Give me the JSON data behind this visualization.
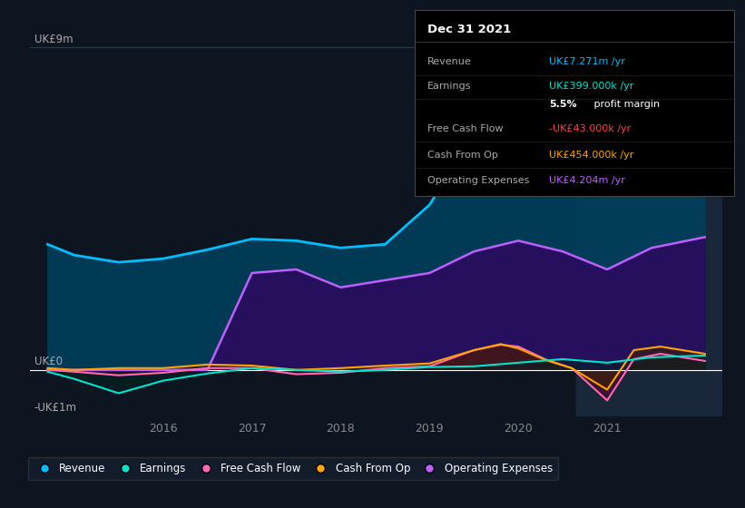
{
  "bg_color": "#0d1520",
  "plot_bg_color": "#0d1520",
  "title_box": {
    "date": "Dec 31 2021",
    "rows": [
      {
        "label": "Revenue",
        "value": "UK£7.271m /yr",
        "value_color": "#00bfff"
      },
      {
        "label": "Earnings",
        "value": "UK£399.000k /yr",
        "value_color": "#00e5cc"
      },
      {
        "label": "",
        "value": "5.5% profit margin",
        "value_color": "#ffffff"
      },
      {
        "label": "Free Cash Flow",
        "value": "-UK£43.000k /yr",
        "value_color": "#ff4444"
      },
      {
        "label": "Cash From Op",
        "value": "UK£454.000k /yr",
        "value_color": "#ffa500"
      },
      {
        "label": "Operating Expenses",
        "value": "UK£4.204m /yr",
        "value_color": "#bf5fff"
      }
    ]
  },
  "ylabel_top": "UK£9m",
  "ylabel_zero": "UK£0",
  "ylabel_neg": "-UK£1m",
  "ylim": [
    -1.3,
    9.6
  ],
  "xlim": [
    2014.5,
    2022.3
  ],
  "xtick_labels": [
    "2016",
    "2017",
    "2018",
    "2019",
    "2020",
    "2021"
  ],
  "xtick_positions": [
    2016,
    2017,
    2018,
    2019,
    2020,
    2021
  ],
  "Revenue": {
    "color": "#00bfff",
    "fill": "#003f5c",
    "x": [
      2014.7,
      2015.0,
      2015.5,
      2016.0,
      2016.5,
      2017.0,
      2017.5,
      2018.0,
      2018.5,
      2019.0,
      2019.5,
      2020.0,
      2020.4,
      2020.8,
      2021.0,
      2021.5,
      2022.1
    ],
    "y": [
      3.5,
      3.2,
      3.0,
      3.1,
      3.35,
      3.65,
      3.6,
      3.4,
      3.5,
      4.6,
      6.6,
      8.3,
      8.2,
      7.9,
      5.8,
      7.1,
      7.5
    ]
  },
  "Operating Expenses": {
    "color": "#bf5fff",
    "fill": "#2a0d5e",
    "x": [
      2014.7,
      2015.0,
      2015.5,
      2016.0,
      2016.5,
      2017.0,
      2017.5,
      2018.0,
      2018.5,
      2019.0,
      2019.5,
      2020.0,
      2020.5,
      2021.0,
      2021.5,
      2022.1
    ],
    "y": [
      0.0,
      0.0,
      0.0,
      0.0,
      0.0,
      2.7,
      2.8,
      2.3,
      2.5,
      2.7,
      3.3,
      3.6,
      3.3,
      2.8,
      3.4,
      3.7
    ]
  },
  "Free Cash Flow": {
    "color": "#ff69b4",
    "fill": "#5a0030",
    "x": [
      2014.7,
      2015.0,
      2015.5,
      2016.0,
      2016.5,
      2017.0,
      2017.5,
      2018.0,
      2018.5,
      2019.0,
      2019.5,
      2019.8,
      2020.0,
      2020.3,
      2020.6,
      2021.0,
      2021.3,
      2021.6,
      2022.1
    ],
    "y": [
      0.0,
      -0.05,
      -0.15,
      -0.08,
      0.05,
      0.05,
      -0.12,
      -0.08,
      0.05,
      0.1,
      0.55,
      0.7,
      0.65,
      0.3,
      0.05,
      -0.85,
      0.3,
      0.45,
      0.25
    ]
  },
  "Cash From Op": {
    "color": "#ffa500",
    "fill": "#3d2200",
    "x": [
      2014.7,
      2015.0,
      2015.5,
      2016.0,
      2016.5,
      2017.0,
      2017.5,
      2018.0,
      2018.5,
      2019.0,
      2019.5,
      2019.8,
      2020.0,
      2020.3,
      2020.6,
      2021.0,
      2021.3,
      2021.6,
      2022.1
    ],
    "y": [
      0.05,
      0.0,
      0.05,
      0.05,
      0.15,
      0.12,
      0.0,
      0.05,
      0.12,
      0.18,
      0.55,
      0.72,
      0.6,
      0.28,
      0.05,
      -0.55,
      0.55,
      0.65,
      0.45
    ]
  },
  "Earnings": {
    "color": "#00e5cc",
    "fill": "#002222",
    "x": [
      2014.7,
      2015.0,
      2015.5,
      2016.0,
      2016.5,
      2017.0,
      2017.5,
      2018.0,
      2018.5,
      2019.0,
      2019.5,
      2020.0,
      2020.5,
      2021.0,
      2021.5,
      2022.1
    ],
    "y": [
      -0.05,
      -0.25,
      -0.65,
      -0.3,
      -0.1,
      0.05,
      0.0,
      -0.05,
      0.0,
      0.08,
      0.1,
      0.2,
      0.3,
      0.2,
      0.35,
      0.4
    ]
  },
  "legend": [
    {
      "label": "Revenue",
      "color": "#00bfff"
    },
    {
      "label": "Earnings",
      "color": "#00e5cc"
    },
    {
      "label": "Free Cash Flow",
      "color": "#ff69b4"
    },
    {
      "label": "Cash From Op",
      "color": "#ffa500"
    },
    {
      "label": "Operating Expenses",
      "color": "#bf5fff"
    }
  ],
  "highlight_x_start": 2020.65,
  "highlight_x_end": 2022.3
}
